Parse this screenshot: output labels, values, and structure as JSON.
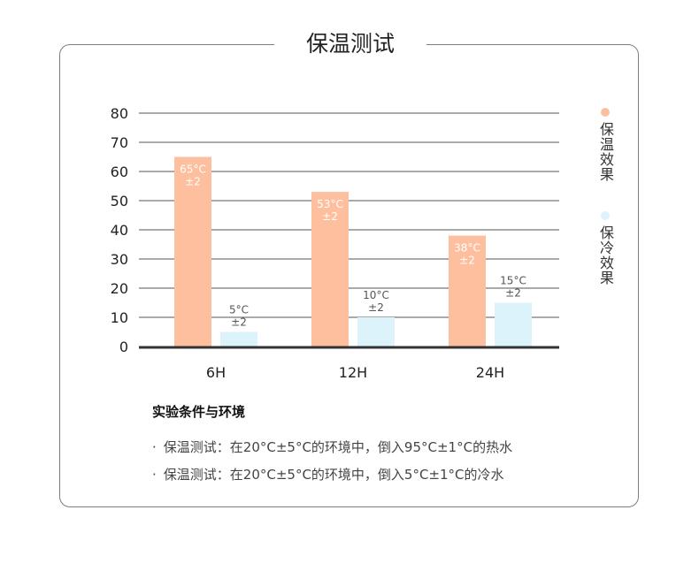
{
  "title": "保温测试",
  "chart_data": {
    "type": "bar",
    "categories": [
      "6H",
      "12H",
      "24H"
    ],
    "ylim": [
      0,
      80
    ],
    "yticks": [
      0,
      10,
      20,
      30,
      40,
      50,
      60,
      70,
      80
    ],
    "grid": true,
    "legend_position": "right",
    "series": [
      {
        "name": "保温效果",
        "color": "#fdbf9e",
        "values": [
          65,
          53,
          38
        ],
        "labels": [
          [
            "65°C",
            "±2"
          ],
          [
            "53°C",
            "±2"
          ],
          [
            "38°C",
            "±2"
          ]
        ],
        "label_color": "#ffffff"
      },
      {
        "name": "保冷效果",
        "color": "#dcf3fb",
        "values": [
          5,
          10,
          15
        ],
        "labels": [
          [
            "5°C",
            "±2"
          ],
          [
            "10°C",
            "±2"
          ],
          [
            "15°C",
            "±2"
          ]
        ],
        "label_color": "#555555"
      }
    ]
  },
  "conditions": {
    "heading": "实验条件与环境",
    "bullet": "·",
    "items": [
      "保温测试：在20°C±5°C的环境中，倒入95°C±1°C的热水",
      "保温测试：在20°C±5°C的环境中，倒入5°C±1°C的冷水"
    ]
  }
}
